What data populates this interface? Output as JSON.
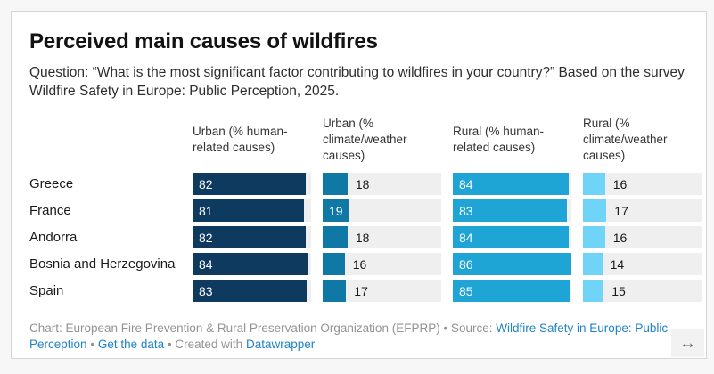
{
  "header": {
    "title": "Perceived main causes of wildfires",
    "subtitle": "Question: “What is the most significant factor contributing to wildfires in your country?” Based on the survey Wildfire Safety in Europe: Public Perception, 2025."
  },
  "table": {
    "scale_max": 86,
    "track_color": "#efefef",
    "columns": [
      {
        "label": "Urban (% human-related causes)",
        "color": "#0d3a5e"
      },
      {
        "label": "Urban (% climate/weather causes)",
        "color": "#0f78a4"
      },
      {
        "label": "Rural (% human-related causes)",
        "color": "#1ea5d6"
      },
      {
        "label": "Rural (% climate/weather causes)",
        "color": "#6fd4f7"
      }
    ],
    "rows": [
      {
        "country": "Greece",
        "cells": [
          {
            "value": 82,
            "inside": true
          },
          {
            "value": 18,
            "inside": false
          },
          {
            "value": 84,
            "inside": true
          },
          {
            "value": 16,
            "inside": false
          }
        ]
      },
      {
        "country": "France",
        "cells": [
          {
            "value": 81,
            "inside": true
          },
          {
            "value": 19,
            "inside": true
          },
          {
            "value": 83,
            "inside": true
          },
          {
            "value": 17,
            "inside": false
          }
        ]
      },
      {
        "country": "Andorra",
        "cells": [
          {
            "value": 82,
            "inside": true
          },
          {
            "value": 18,
            "inside": false
          },
          {
            "value": 84,
            "inside": true
          },
          {
            "value": 16,
            "inside": false
          }
        ]
      },
      {
        "country": "Bosnia and Herzegovina",
        "cells": [
          {
            "value": 84,
            "inside": true
          },
          {
            "value": 16,
            "inside": false
          },
          {
            "value": 86,
            "inside": true
          },
          {
            "value": 14,
            "inside": false
          }
        ]
      },
      {
        "country": "Spain",
        "cells": [
          {
            "value": 83,
            "inside": true
          },
          {
            "value": 17,
            "inside": false
          },
          {
            "value": 85,
            "inside": true
          },
          {
            "value": 15,
            "inside": false
          }
        ]
      }
    ]
  },
  "footer": {
    "chart_credit": "Chart: European Fire Prevention & Rural Preservation Organization (EFPRP)",
    "separator": "•",
    "source_label": "Source:",
    "source_link": "Wildfire Safety in Europe: Public Perception",
    "get_data_link": "Get the data",
    "created_with": "Created with",
    "datawrapper_link": "Datawrapper",
    "resize_icon": "↔"
  },
  "colors": {
    "navy": "#0d3a5e",
    "teal_blue": "#0f78a4",
    "cyan": "#1ea5d6",
    "sky_blue": "#6fd4f7",
    "bar_track": "#efefef",
    "link_blue": "#1f83c7",
    "footer_gray": "#939393"
  },
  "chart_data": {
    "type": "bar",
    "layout": "bar-table",
    "orientation": "horizontal",
    "title": "Perceived main causes of wildfires",
    "subtitle": "Question: “What is the most significant factor contributing to wildfires in your country?” Based on the survey Wildfire Safety in Europe: Public Perception, 2025.",
    "categories": [
      "Greece",
      "France",
      "Andorra",
      "Bosnia and Herzegovina",
      "Spain"
    ],
    "series": [
      {
        "name": "Urban (% human-related causes)",
        "values": [
          82,
          81,
          82,
          84,
          83
        ],
        "color": "#0d3a5e"
      },
      {
        "name": "Urban (% climate/weather causes)",
        "values": [
          18,
          19,
          18,
          16,
          17
        ],
        "color": "#0f78a4"
      },
      {
        "name": "Rural (% human-related causes)",
        "values": [
          84,
          83,
          84,
          86,
          85
        ],
        "color": "#1ea5d6"
      },
      {
        "name": "Rural (% climate/weather causes)",
        "values": [
          16,
          17,
          16,
          14,
          15
        ],
        "color": "#6fd4f7"
      }
    ],
    "xlim": [
      0,
      86
    ],
    "grid": false,
    "legend_position": "column-headers"
  }
}
